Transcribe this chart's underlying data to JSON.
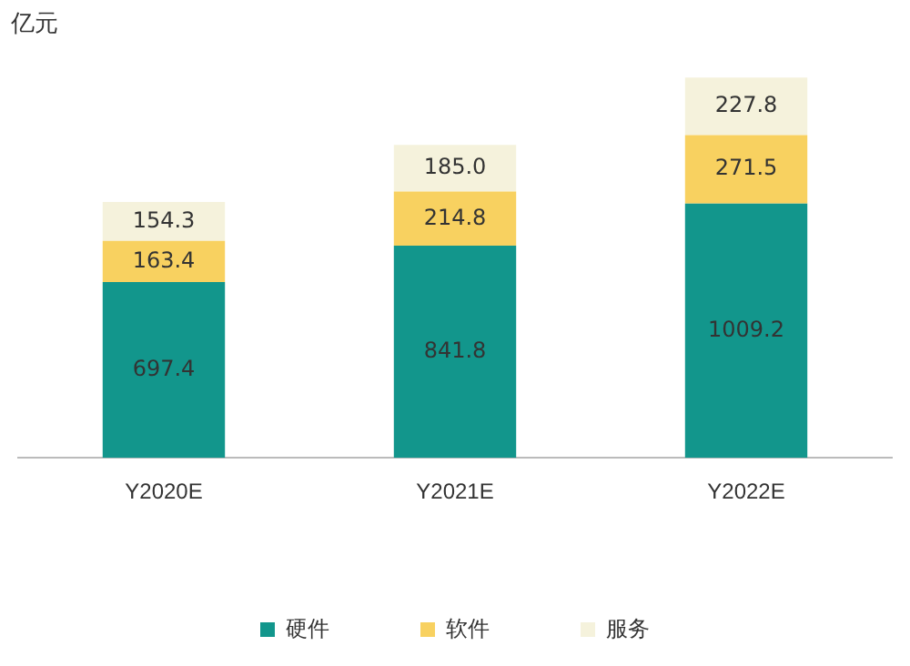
{
  "chart_data": {
    "type": "bar",
    "stacked": true,
    "ylabel": "亿元",
    "categories": [
      "Y2020E",
      "Y2021E",
      "Y2022E"
    ],
    "series": [
      {
        "name": "硬件",
        "color": "#12968c",
        "values": [
          697.4,
          841.8,
          1009.2
        ],
        "value_labels": [
          "697.4",
          "841.8",
          "1009.2"
        ]
      },
      {
        "name": "软件",
        "color": "#f8d160",
        "values": [
          163.4,
          214.8,
          271.5
        ],
        "value_labels": [
          "163.4",
          "214.8",
          "271.5"
        ]
      },
      {
        "name": "服务",
        "color": "#f5f2dc",
        "values": [
          154.3,
          185.0,
          227.8
        ],
        "value_labels": [
          "154.3",
          "185.0",
          "227.8"
        ]
      }
    ],
    "legend": "bottom",
    "grid": false,
    "tick_labels": "x"
  }
}
